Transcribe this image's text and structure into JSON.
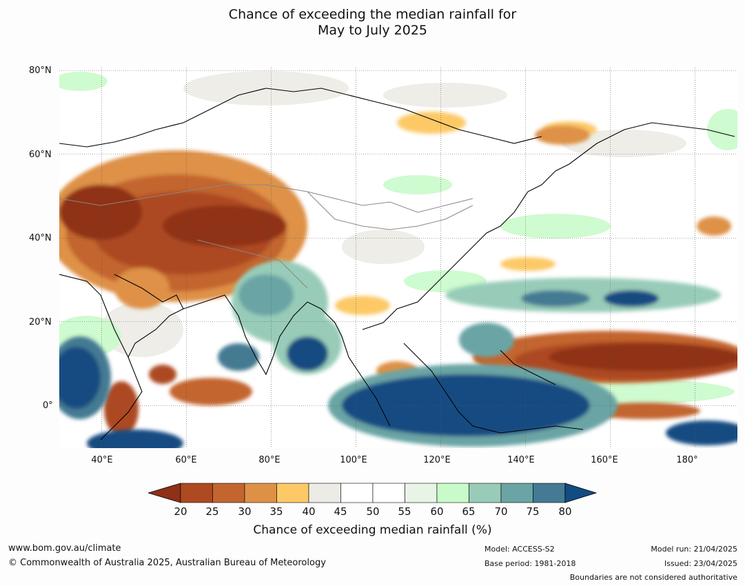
{
  "title_line1": "Chance of exceeding the median rainfall for",
  "title_line2": "May to July 2025",
  "lat_labels": [
    "80°N",
    "60°N",
    "40°N",
    "20°N",
    "0°"
  ],
  "lon_labels": [
    "40°E",
    "60°E",
    "80°E",
    "100°E",
    "120°E",
    "140°E",
    "160°E",
    "180°"
  ],
  "lon_values": [
    40,
    60,
    80,
    100,
    120,
    140,
    160,
    180
  ],
  "lat_values": [
    80,
    60,
    40,
    20,
    0
  ],
  "map_extent": {
    "lon": [
      30,
      190
    ],
    "lat": [
      -10,
      80
    ]
  },
  "colorbar": {
    "title": "Chance of exceeding median rainfall (%)",
    "ticks": [
      "20",
      "25",
      "30",
      "35",
      "40",
      "45",
      "50",
      "55",
      "60",
      "65",
      "70",
      "75",
      "80"
    ],
    "colors": [
      "#ad4a22",
      "#c3652f",
      "#de9146",
      "#fcc966",
      "#ecebe6",
      "#ffffff",
      "#ffffff",
      "#e8f5e6",
      "#c9fbca",
      "#98ccb8",
      "#6aa4a4",
      "#447a93"
    ],
    "below_color": "#8f3018",
    "above_color": "#134c82"
  },
  "footer": {
    "website": "www.bom.gov.au/climate",
    "copyright": "© Commonwealth of Australia 2025, Australian Bureau of Meteorology",
    "model": "Model: ACCESS-S2",
    "base_period": "Base period: 1981-2018",
    "model_run": "Model run: 21/04/2025",
    "issued": "Issued: 23/04/2025",
    "disclaimer": "Boundaries are not considered authoritative"
  }
}
